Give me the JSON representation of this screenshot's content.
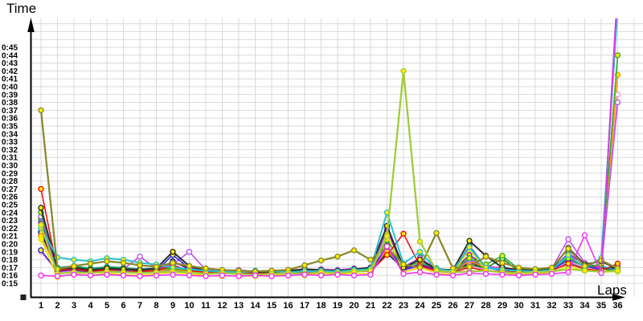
{
  "chart_data": {
    "type": "line",
    "title": "",
    "xlabel": "Laps",
    "ylabel": "Time",
    "values_unit": "seconds",
    "x": [
      1,
      2,
      3,
      4,
      5,
      6,
      7,
      8,
      9,
      10,
      11,
      12,
      13,
      14,
      15,
      16,
      17,
      18,
      19,
      20,
      21,
      22,
      23,
      24,
      25,
      26,
      27,
      28,
      29,
      30,
      31,
      32,
      33,
      34,
      35,
      36
    ],
    "y_tick_labels": [
      "0:15",
      "0:16",
      "0:17",
      "0:18",
      "0:19",
      "0:20",
      "0:21",
      "0:22",
      "0:23",
      "0:24",
      "0:25",
      "0:26",
      "0:27",
      "0:28",
      "0:29",
      "0:30",
      "0:31",
      "0:32",
      "0:33",
      "0:34",
      "0:35",
      "0:36",
      "0:37",
      "0:38",
      "0:39",
      "0:40",
      "0:41",
      "0:42",
      "0:43",
      "0:44",
      "0:45"
    ],
    "ylim_seconds": [
      15,
      45
    ],
    "grid": true,
    "legend": "none",
    "marker_colors": {
      "filled": "#ffee00",
      "open": "#ffffff"
    },
    "series": [
      {
        "name": "navy",
        "color": "#00008b",
        "marker_fill": "#ffee00",
        "width": 1.6,
        "values": [
          21.5,
          16.7,
          16.9,
          16.6,
          16.8,
          16.7,
          16.5,
          16.7,
          17.8,
          16.8,
          16.5,
          16.4,
          16.5,
          16.4,
          16.5,
          16.6,
          16.5,
          16.7,
          16.6,
          16.8,
          16.7,
          18.8,
          16.9,
          17.2,
          16.7,
          16.5,
          17.6,
          17.0,
          16.7,
          16.5,
          16.6,
          16.8,
          17.4,
          17.0,
          16.8,
          17.0
        ]
      },
      {
        "name": "darkgreen",
        "color": "#118811",
        "marker_fill": "#ffffff",
        "width": 1.6,
        "values": [
          23.2,
          16.6,
          16.8,
          16.5,
          16.7,
          16.6,
          16.5,
          16.6,
          16.7,
          16.5,
          16.4,
          16.3,
          16.4,
          16.3,
          16.4,
          16.5,
          16.4,
          16.6,
          16.5,
          16.7,
          16.6,
          19.0,
          16.8,
          18.3,
          16.7,
          16.5,
          17.4,
          16.9,
          18.2,
          16.5,
          16.4,
          16.6,
          17.8,
          16.8,
          16.9,
          16.5
        ]
      },
      {
        "name": "teal",
        "color": "#0d9999",
        "marker_fill": "#ffee00",
        "width": 1.6,
        "values": [
          22.8,
          17.0,
          17.2,
          16.9,
          17.1,
          17.0,
          16.8,
          16.9,
          17.0,
          16.8,
          16.7,
          16.6,
          16.5,
          16.6,
          16.5,
          16.6,
          16.7,
          16.6,
          16.7,
          16.8,
          16.9,
          19.5,
          16.9,
          17.4,
          16.8,
          16.7,
          17.8,
          17.2,
          16.9,
          16.7,
          16.6,
          16.8,
          17.6,
          16.9,
          17.2,
          16.6
        ]
      },
      {
        "name": "orange",
        "color": "#ff9500",
        "marker_fill": "#ffee00",
        "width": 1.6,
        "values": [
          21.0,
          16.6,
          16.8,
          16.5,
          16.7,
          16.6,
          16.5,
          16.7,
          16.8,
          16.6,
          16.5,
          16.4,
          16.5,
          16.4,
          16.5,
          16.6,
          16.5,
          16.7,
          16.6,
          16.8,
          16.7,
          19.2,
          16.9,
          17.2,
          16.7,
          16.5,
          17.8,
          17.0,
          16.7,
          16.5,
          16.6,
          16.8,
          18.4,
          17.2,
          16.9,
          41.5
        ]
      },
      {
        "name": "purple",
        "color": "#8812b0",
        "marker_fill": "#ffee00",
        "width": 1.6,
        "values": [
          22.6,
          16.7,
          16.9,
          16.6,
          16.8,
          16.7,
          16.6,
          16.8,
          17.6,
          17.0,
          16.6,
          16.5,
          16.6,
          16.4,
          16.5,
          16.6,
          16.5,
          16.7,
          16.6,
          16.8,
          16.7,
          21.8,
          16.9,
          17.4,
          16.8,
          16.5,
          18.6,
          17.2,
          16.8,
          16.6,
          16.5,
          16.7,
          18.8,
          17.4,
          17.0,
          52.5
        ]
      },
      {
        "name": "pink",
        "color": "#ff8fc8",
        "marker_fill": "#ffffff",
        "width": 1.6,
        "values": [
          19.0,
          16.4,
          16.6,
          16.3,
          16.5,
          16.4,
          16.3,
          16.5,
          16.6,
          16.4,
          16.3,
          16.2,
          16.3,
          16.2,
          16.3,
          16.4,
          16.3,
          16.5,
          16.4,
          16.6,
          16.5,
          20.9,
          16.7,
          17.0,
          16.5,
          16.3,
          17.2,
          16.8,
          17.2,
          16.3,
          16.4,
          16.6,
          17.8,
          17.0,
          16.6,
          39.0
        ]
      },
      {
        "name": "violet",
        "color": "#c050e8",
        "marker_fill": "#ffffff",
        "width": 1.6,
        "values": [
          23.5,
          16.8,
          17.0,
          16.7,
          16.9,
          16.8,
          18.4,
          16.9,
          17.4,
          19.0,
          16.7,
          16.6,
          16.7,
          16.5,
          16.6,
          16.7,
          16.6,
          16.8,
          16.7,
          16.9,
          16.8,
          22.0,
          17.1,
          18.2,
          16.9,
          16.6,
          18.0,
          17.2,
          16.8,
          16.6,
          16.7,
          16.9,
          20.6,
          17.6,
          17.0,
          38.0
        ]
      },
      {
        "name": "blue",
        "color": "#2a2ae0",
        "marker_fill": "#ffee00",
        "width": 1.6,
        "values": [
          19.2,
          16.5,
          16.7,
          16.4,
          16.6,
          16.5,
          16.4,
          16.6,
          18.6,
          16.9,
          16.4,
          16.3,
          16.4,
          16.2,
          16.3,
          16.4,
          16.3,
          16.5,
          16.4,
          16.6,
          16.5,
          19.8,
          16.7,
          17.3,
          16.6,
          16.4,
          19.8,
          17.0,
          16.6,
          16.4,
          16.5,
          16.7,
          18.0,
          17.2,
          16.8,
          51.0
        ]
      },
      {
        "name": "green",
        "color": "#2ab02a",
        "marker_fill": "#ffee00",
        "width": 1.6,
        "values": [
          24.0,
          16.9,
          17.1,
          16.8,
          17.0,
          16.9,
          16.7,
          16.8,
          16.9,
          16.7,
          16.6,
          16.5,
          16.6,
          16.5,
          16.4,
          16.6,
          16.5,
          16.7,
          16.6,
          16.8,
          16.7,
          20.5,
          17.2,
          17.6,
          16.9,
          16.6,
          18.2,
          17.4,
          18.5,
          16.8,
          16.7,
          16.9,
          18.2,
          17.1,
          17.4,
          44.0
        ]
      },
      {
        "name": "yellow",
        "color": "#e3e300",
        "marker_fill": "#ffee00",
        "width": 1.6,
        "values": [
          20.6,
          15.8,
          16.2,
          16.0,
          16.3,
          16.1,
          16.0,
          16.2,
          16.4,
          16.2,
          16.0,
          15.9,
          16.0,
          15.9,
          16.0,
          16.1,
          16.0,
          16.2,
          16.1,
          16.3,
          16.2,
          21.2,
          16.4,
          17.0,
          16.3,
          16.1,
          19.4,
          16.6,
          16.3,
          16.1,
          16.2,
          16.4,
          17.2,
          16.6,
          16.4,
          16.5
        ]
      },
      {
        "name": "red",
        "color": "#ee1111",
        "marker_fill": "#ffee00",
        "width": 1.6,
        "values": [
          27.0,
          16.6,
          16.8,
          16.5,
          16.7,
          16.4,
          16.5,
          16.6,
          17.3,
          16.6,
          16.4,
          16.3,
          16.4,
          16.3,
          16.2,
          16.4,
          16.3,
          16.5,
          16.4,
          16.6,
          16.5,
          18.6,
          21.3,
          17.2,
          16.6,
          16.4,
          17.0,
          16.6,
          16.5,
          16.4,
          16.5,
          16.6,
          17.5,
          16.8,
          16.6,
          17.5
        ]
      },
      {
        "name": "black",
        "color": "#2d2d2d",
        "marker_fill": "#ffee00",
        "width": 2.0,
        "values": [
          24.6,
          16.8,
          17.0,
          16.7,
          16.9,
          16.8,
          16.7,
          16.9,
          19.0,
          17.2,
          16.6,
          16.5,
          16.6,
          16.4,
          16.5,
          16.6,
          16.8,
          16.7,
          16.6,
          16.8,
          17.0,
          22.3,
          17.0,
          18.0,
          16.8,
          16.7,
          20.4,
          18.5,
          17.0,
          16.7,
          16.6,
          16.8,
          19.5,
          17.4,
          17.8,
          16.8
        ]
      },
      {
        "name": "cyan",
        "color": "#27c2cf",
        "marker_fill": "#ffee00",
        "width": 2.0,
        "values": [
          22.0,
          18.3,
          18.0,
          17.8,
          18.2,
          18.0,
          17.6,
          17.4,
          17.0,
          16.8,
          16.6,
          16.5,
          16.4,
          16.5,
          16.6,
          16.4,
          16.5,
          16.6,
          16.5,
          16.7,
          16.8,
          24.0,
          17.5,
          19.0,
          16.8,
          16.6,
          19.6,
          17.0,
          16.7,
          16.6,
          16.5,
          16.7,
          18.6,
          17.0,
          18.2,
          50.0
        ]
      },
      {
        "name": "olive",
        "color": "#8a8a30",
        "marker_fill": "#ffee00",
        "width": 2.3,
        "values": [
          37.0,
          16.8,
          17.2,
          17.5,
          17.8,
          17.6,
          17.3,
          17.1,
          17.6,
          17.2,
          16.9,
          16.7,
          16.6,
          16.5,
          16.6,
          16.7,
          17.3,
          17.9,
          18.4,
          19.2,
          18.0,
          19.6,
          17.4,
          17.0,
          21.4,
          16.9,
          17.1,
          18.4,
          17.6,
          17.0,
          16.8,
          17.0,
          19.4,
          17.2,
          17.9,
          16.9
        ]
      },
      {
        "name": "yellowgreen",
        "color": "#a2cc3a",
        "marker_fill": "#ffee00",
        "width": 2.3,
        "values": [
          22.4,
          16.2,
          16.4,
          16.3,
          16.5,
          16.4,
          16.3,
          16.4,
          16.5,
          16.4,
          16.2,
          16.3,
          16.2,
          16.1,
          16.2,
          16.3,
          16.2,
          16.4,
          16.3,
          16.5,
          16.6,
          21.0,
          42.0,
          20.3,
          16.6,
          16.4,
          16.5,
          16.6,
          16.4,
          16.3,
          16.4,
          16.5,
          16.8,
          16.6,
          16.5,
          16.6
        ]
      },
      {
        "name": "magenta",
        "color": "#f22ef2",
        "marker_fill": "#ffffff",
        "width": 1.6,
        "values": [
          16.0,
          15.9,
          16.1,
          16.0,
          16.1,
          16.0,
          15.9,
          16.0,
          16.1,
          16.0,
          15.9,
          16.0,
          15.9,
          16.0,
          15.9,
          16.0,
          16.1,
          16.0,
          16.1,
          16.0,
          16.1,
          19.7,
          16.2,
          16.4,
          16.1,
          16.0,
          16.3,
          16.2,
          16.1,
          16.0,
          16.1,
          16.2,
          16.4,
          21.1,
          16.3,
          52.0
        ]
      }
    ]
  }
}
